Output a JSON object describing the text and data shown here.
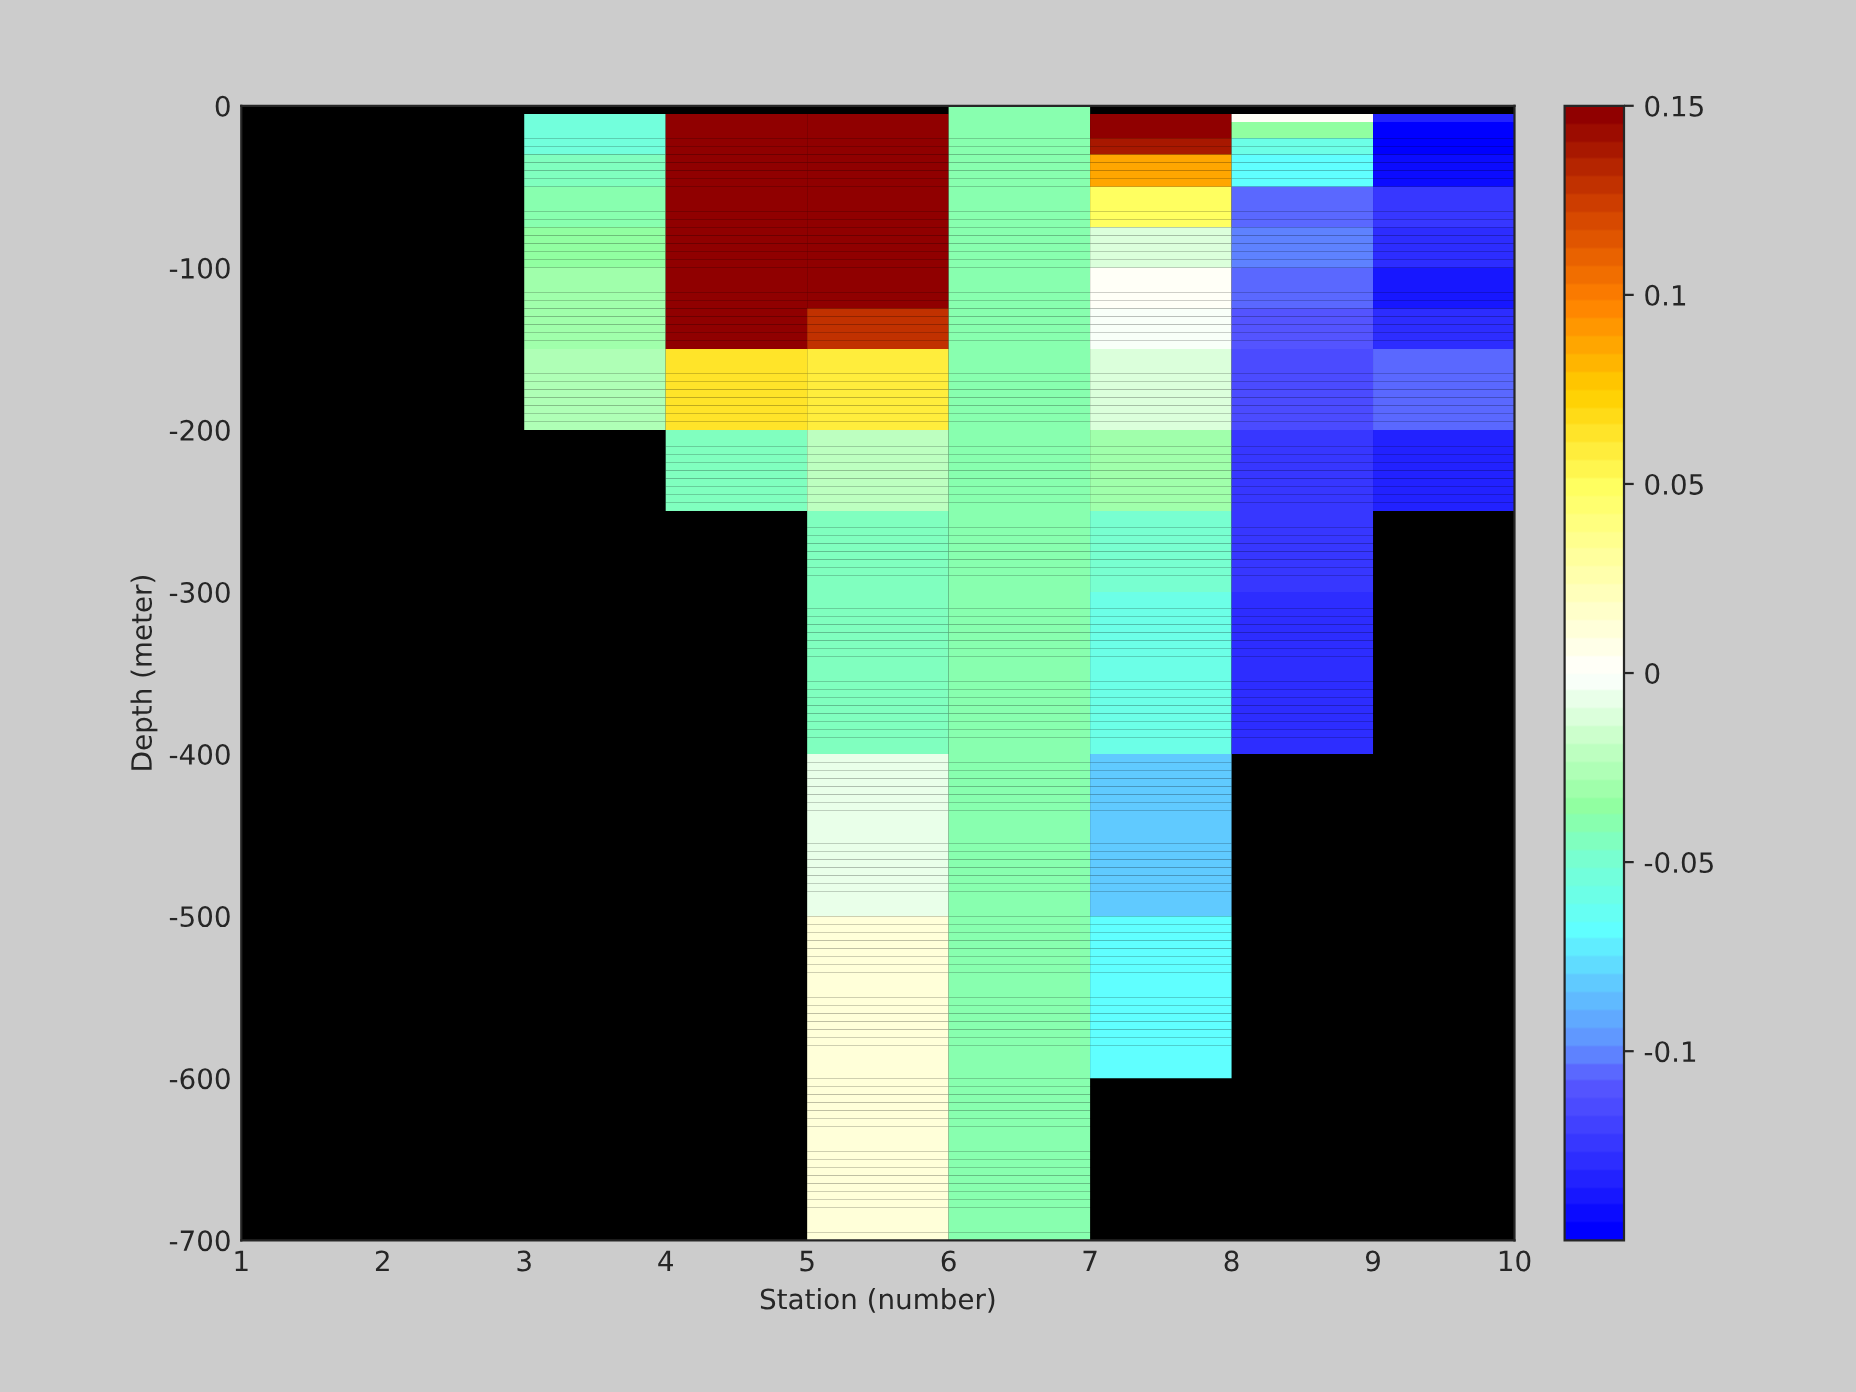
{
  "chart_data": {
    "type": "heatmap",
    "xlabel": "Station (number)",
    "ylabel": "Depth (meter)",
    "cells": [
      [
        null,
        null,
        null,
        null,
        null,
        -0.038,
        null,
        null,
        null
      ],
      [
        null,
        null,
        -0.055,
        0.148,
        0.148,
        -0.038,
        0.148,
        0.0,
        -0.135
      ],
      [
        null,
        null,
        -0.055,
        0.148,
        0.148,
        -0.038,
        0.148,
        -0.035,
        -0.148
      ],
      [
        null,
        null,
        -0.055,
        0.148,
        0.148,
        -0.038,
        0.148,
        -0.035,
        -0.148
      ],
      [
        null,
        null,
        -0.055,
        0.148,
        0.148,
        -0.038,
        0.14,
        -0.058,
        -0.148
      ],
      [
        null,
        null,
        -0.055,
        0.148,
        0.148,
        -0.038,
        0.14,
        -0.058,
        -0.148
      ],
      [
        null,
        null,
        -0.045,
        0.148,
        0.148,
        -0.038,
        0.085,
        -0.07,
        -0.142
      ],
      [
        null,
        null,
        -0.045,
        0.148,
        0.148,
        -0.038,
        0.085,
        -0.07,
        -0.142
      ],
      [
        null,
        null,
        -0.045,
        0.148,
        0.148,
        -0.038,
        0.085,
        -0.07,
        -0.142
      ],
      [
        null,
        null,
        -0.045,
        0.148,
        0.148,
        -0.038,
        0.085,
        -0.07,
        -0.142
      ],
      [
        null,
        null,
        -0.038,
        0.148,
        0.148,
        -0.038,
        0.05,
        -0.105,
        -0.125
      ],
      [
        null,
        null,
        -0.038,
        0.148,
        0.148,
        -0.038,
        0.05,
        -0.105,
        -0.125
      ],
      [
        null,
        null,
        -0.038,
        0.148,
        0.148,
        -0.038,
        0.05,
        -0.105,
        -0.125
      ],
      [
        null,
        null,
        -0.038,
        0.148,
        0.148,
        -0.038,
        0.05,
        -0.105,
        -0.125
      ],
      [
        null,
        null,
        -0.038,
        0.148,
        0.148,
        -0.038,
        0.05,
        -0.105,
        -0.125
      ],
      [
        null,
        null,
        -0.035,
        0.148,
        0.148,
        -0.038,
        -0.01,
        -0.1,
        -0.13
      ],
      [
        null,
        null,
        -0.035,
        0.148,
        0.148,
        -0.038,
        -0.01,
        -0.1,
        -0.13
      ],
      [
        null,
        null,
        -0.035,
        0.148,
        0.148,
        -0.038,
        -0.01,
        -0.1,
        -0.13
      ],
      [
        null,
        null,
        -0.035,
        0.148,
        0.148,
        -0.038,
        -0.01,
        -0.1,
        -0.13
      ],
      [
        null,
        null,
        -0.035,
        0.148,
        0.148,
        -0.038,
        -0.01,
        -0.1,
        -0.13
      ],
      [
        null,
        null,
        -0.03,
        0.148,
        0.148,
        -0.038,
        0.002,
        -0.105,
        -0.138
      ],
      [
        null,
        null,
        -0.03,
        0.148,
        0.148,
        -0.038,
        0.002,
        -0.105,
        -0.138
      ],
      [
        null,
        null,
        -0.03,
        0.148,
        0.148,
        -0.038,
        0.002,
        -0.105,
        -0.138
      ],
      [
        null,
        null,
        -0.03,
        0.148,
        0.148,
        -0.038,
        0.002,
        -0.105,
        -0.138
      ],
      [
        null,
        null,
        -0.03,
        0.148,
        0.148,
        -0.038,
        0.002,
        -0.105,
        -0.138
      ],
      [
        null,
        null,
        -0.03,
        0.148,
        0.13,
        -0.038,
        -0.002,
        -0.11,
        -0.13
      ],
      [
        null,
        null,
        -0.03,
        0.148,
        0.13,
        -0.038,
        -0.002,
        -0.11,
        -0.13
      ],
      [
        null,
        null,
        -0.03,
        0.148,
        0.13,
        -0.038,
        -0.002,
        -0.11,
        -0.13
      ],
      [
        null,
        null,
        -0.03,
        0.148,
        0.13,
        -0.038,
        -0.002,
        -0.11,
        -0.13
      ],
      [
        null,
        null,
        -0.03,
        0.148,
        0.13,
        -0.038,
        -0.002,
        -0.11,
        -0.13
      ],
      [
        null,
        null,
        -0.025,
        0.065,
        0.06,
        -0.038,
        -0.01,
        -0.115,
        -0.105
      ],
      [
        null,
        null,
        -0.025,
        0.065,
        0.06,
        -0.038,
        -0.01,
        -0.115,
        -0.105
      ],
      [
        null,
        null,
        -0.025,
        0.065,
        0.06,
        -0.038,
        -0.01,
        -0.115,
        -0.105
      ],
      [
        null,
        null,
        -0.025,
        0.065,
        0.06,
        -0.038,
        -0.01,
        -0.115,
        -0.105
      ],
      [
        null,
        null,
        -0.025,
        0.065,
        0.06,
        -0.038,
        -0.01,
        -0.115,
        -0.105
      ],
      [
        null,
        null,
        -0.025,
        0.065,
        0.06,
        -0.038,
        -0.01,
        -0.115,
        -0.105
      ],
      [
        null,
        null,
        -0.025,
        0.065,
        0.06,
        -0.038,
        -0.01,
        -0.115,
        -0.105
      ],
      [
        null,
        null,
        -0.025,
        0.065,
        0.06,
        -0.038,
        -0.01,
        -0.115,
        -0.105
      ],
      [
        null,
        null,
        -0.025,
        0.065,
        0.06,
        -0.038,
        -0.01,
        -0.115,
        -0.105
      ],
      [
        null,
        null,
        -0.025,
        0.065,
        0.06,
        -0.038,
        -0.01,
        -0.115,
        -0.105
      ],
      [
        null,
        null,
        null,
        -0.045,
        -0.02,
        -0.038,
        -0.032,
        -0.125,
        -0.135
      ],
      [
        null,
        null,
        null,
        -0.045,
        -0.02,
        -0.038,
        -0.032,
        -0.125,
        -0.135
      ],
      [
        null,
        null,
        null,
        -0.045,
        -0.02,
        -0.038,
        -0.032,
        -0.125,
        -0.135
      ],
      [
        null,
        null,
        null,
        -0.045,
        -0.02,
        -0.038,
        -0.032,
        -0.125,
        -0.135
      ],
      [
        null,
        null,
        null,
        -0.045,
        -0.02,
        -0.038,
        -0.032,
        -0.125,
        -0.135
      ],
      [
        null,
        null,
        null,
        -0.045,
        -0.02,
        -0.038,
        -0.032,
        -0.125,
        -0.135
      ],
      [
        null,
        null,
        null,
        -0.045,
        -0.02,
        -0.038,
        -0.032,
        -0.125,
        -0.135
      ],
      [
        null,
        null,
        null,
        -0.045,
        -0.02,
        -0.038,
        -0.032,
        -0.125,
        -0.135
      ],
      [
        null,
        null,
        null,
        -0.045,
        -0.02,
        -0.038,
        -0.032,
        -0.125,
        -0.135
      ],
      [
        null,
        null,
        null,
        -0.045,
        -0.02,
        -0.038,
        -0.032,
        -0.125,
        -0.135
      ],
      [
        null,
        null,
        null,
        null,
        -0.043,
        -0.038,
        -0.047,
        -0.125,
        null
      ],
      [
        null,
        null,
        null,
        null,
        -0.043,
        -0.038,
        -0.047,
        -0.125,
        null
      ],
      [
        null,
        null,
        null,
        null,
        -0.043,
        -0.038,
        -0.047,
        -0.125,
        null
      ],
      [
        null,
        null,
        null,
        null,
        -0.043,
        -0.038,
        -0.047,
        -0.125,
        null
      ],
      [
        null,
        null,
        null,
        null,
        -0.043,
        -0.038,
        -0.047,
        -0.125,
        null
      ],
      [
        null,
        null,
        null,
        null,
        -0.043,
        -0.038,
        -0.047,
        -0.125,
        null
      ],
      [
        null,
        null,
        null,
        null,
        -0.043,
        -0.038,
        -0.047,
        -0.125,
        null
      ],
      [
        null,
        null,
        null,
        null,
        -0.043,
        -0.038,
        -0.047,
        -0.125,
        null
      ],
      [
        null,
        null,
        null,
        null,
        -0.043,
        -0.038,
        -0.047,
        -0.125,
        null
      ],
      [
        null,
        null,
        null,
        null,
        -0.043,
        -0.038,
        -0.047,
        -0.125,
        null
      ],
      [
        null,
        null,
        null,
        null,
        -0.043,
        -0.038,
        -0.06,
        -0.13,
        null
      ],
      [
        null,
        null,
        null,
        null,
        -0.043,
        -0.038,
        -0.06,
        -0.13,
        null
      ],
      [
        null,
        null,
        null,
        null,
        -0.043,
        -0.038,
        -0.06,
        -0.13,
        null
      ],
      [
        null,
        null,
        null,
        null,
        -0.043,
        -0.038,
        -0.06,
        -0.13,
        null
      ],
      [
        null,
        null,
        null,
        null,
        -0.043,
        -0.038,
        -0.06,
        -0.13,
        null
      ],
      [
        null,
        null,
        null,
        null,
        -0.043,
        -0.038,
        -0.06,
        -0.13,
        null
      ],
      [
        null,
        null,
        null,
        null,
        -0.043,
        -0.038,
        -0.06,
        -0.13,
        null
      ],
      [
        null,
        null,
        null,
        null,
        -0.043,
        -0.038,
        -0.06,
        -0.13,
        null
      ],
      [
        null,
        null,
        null,
        null,
        -0.043,
        -0.038,
        -0.06,
        -0.13,
        null
      ],
      [
        null,
        null,
        null,
        null,
        -0.043,
        -0.038,
        -0.06,
        -0.13,
        null
      ],
      [
        null,
        null,
        null,
        null,
        -0.043,
        -0.038,
        -0.06,
        -0.13,
        null
      ],
      [
        null,
        null,
        null,
        null,
        -0.043,
        -0.038,
        -0.06,
        -0.13,
        null
      ],
      [
        null,
        null,
        null,
        null,
        -0.043,
        -0.038,
        -0.06,
        -0.13,
        null
      ],
      [
        null,
        null,
        null,
        null,
        -0.043,
        -0.038,
        -0.06,
        -0.13,
        null
      ],
      [
        null,
        null,
        null,
        null,
        -0.043,
        -0.038,
        -0.06,
        -0.13,
        null
      ],
      [
        null,
        null,
        null,
        null,
        -0.043,
        -0.038,
        -0.06,
        -0.13,
        null
      ],
      [
        null,
        null,
        null,
        null,
        -0.043,
        -0.038,
        -0.06,
        -0.13,
        null
      ],
      [
        null,
        null,
        null,
        null,
        -0.043,
        -0.038,
        -0.06,
        -0.13,
        null
      ],
      [
        null,
        null,
        null,
        null,
        -0.043,
        -0.038,
        -0.06,
        -0.13,
        null
      ],
      [
        null,
        null,
        null,
        null,
        -0.043,
        -0.038,
        -0.06,
        -0.13,
        null
      ],
      [
        null,
        null,
        null,
        null,
        -0.008,
        -0.038,
        -0.08,
        null,
        null
      ],
      [
        null,
        null,
        null,
        null,
        -0.008,
        -0.038,
        -0.08,
        null,
        null
      ],
      [
        null,
        null,
        null,
        null,
        -0.008,
        -0.038,
        -0.08,
        null,
        null
      ],
      [
        null,
        null,
        null,
        null,
        -0.008,
        -0.038,
        -0.08,
        null,
        null
      ],
      [
        null,
        null,
        null,
        null,
        -0.008,
        -0.038,
        -0.08,
        null,
        null
      ],
      [
        null,
        null,
        null,
        null,
        -0.008,
        -0.038,
        -0.08,
        null,
        null
      ],
      [
        null,
        null,
        null,
        null,
        -0.008,
        -0.038,
        -0.08,
        null,
        null
      ],
      [
        null,
        null,
        null,
        null,
        -0.008,
        -0.038,
        -0.08,
        null,
        null
      ],
      [
        null,
        null,
        null,
        null,
        -0.008,
        -0.038,
        -0.08,
        null,
        null
      ],
      [
        null,
        null,
        null,
        null,
        -0.008,
        -0.038,
        -0.08,
        null,
        null
      ],
      [
        null,
        null,
        null,
        null,
        -0.008,
        -0.038,
        -0.08,
        null,
        null
      ],
      [
        null,
        null,
        null,
        null,
        -0.008,
        -0.038,
        -0.08,
        null,
        null
      ],
      [
        null,
        null,
        null,
        null,
        -0.008,
        -0.038,
        -0.08,
        null,
        null
      ],
      [
        null,
        null,
        null,
        null,
        -0.008,
        -0.038,
        -0.08,
        null,
        null
      ],
      [
        null,
        null,
        null,
        null,
        -0.008,
        -0.038,
        -0.08,
        null,
        null
      ],
      [
        null,
        null,
        null,
        null,
        -0.008,
        -0.038,
        -0.08,
        null,
        null
      ],
      [
        null,
        null,
        null,
        null,
        -0.008,
        -0.038,
        -0.08,
        null,
        null
      ],
      [
        null,
        null,
        null,
        null,
        -0.008,
        -0.038,
        -0.08,
        null,
        null
      ],
      [
        null,
        null,
        null,
        null,
        -0.008,
        -0.038,
        -0.08,
        null,
        null
      ],
      [
        null,
        null,
        null,
        null,
        -0.008,
        -0.038,
        -0.08,
        null,
        null
      ],
      [
        null,
        null,
        null,
        null,
        0.01,
        -0.038,
        -0.07,
        null,
        null
      ],
      [
        null,
        null,
        null,
        null,
        0.01,
        -0.038,
        -0.07,
        null,
        null
      ],
      [
        null,
        null,
        null,
        null,
        0.01,
        -0.038,
        -0.07,
        null,
        null
      ],
      [
        null,
        null,
        null,
        null,
        0.01,
        -0.038,
        -0.07,
        null,
        null
      ],
      [
        null,
        null,
        null,
        null,
        0.01,
        -0.038,
        -0.07,
        null,
        null
      ],
      [
        null,
        null,
        null,
        null,
        0.01,
        -0.038,
        -0.07,
        null,
        null
      ],
      [
        null,
        null,
        null,
        null,
        0.01,
        -0.038,
        -0.07,
        null,
        null
      ],
      [
        null,
        null,
        null,
        null,
        0.01,
        -0.038,
        -0.07,
        null,
        null
      ],
      [
        null,
        null,
        null,
        null,
        0.01,
        -0.038,
        -0.07,
        null,
        null
      ],
      [
        null,
        null,
        null,
        null,
        0.01,
        -0.038,
        -0.07,
        null,
        null
      ],
      [
        null,
        null,
        null,
        null,
        0.01,
        -0.038,
        -0.07,
        null,
        null
      ],
      [
        null,
        null,
        null,
        null,
        0.01,
        -0.038,
        -0.07,
        null,
        null
      ],
      [
        null,
        null,
        null,
        null,
        0.01,
        -0.038,
        -0.07,
        null,
        null
      ],
      [
        null,
        null,
        null,
        null,
        0.01,
        -0.038,
        -0.07,
        null,
        null
      ],
      [
        null,
        null,
        null,
        null,
        0.01,
        -0.038,
        -0.07,
        null,
        null
      ],
      [
        null,
        null,
        null,
        null,
        0.01,
        -0.038,
        -0.07,
        null,
        null
      ],
      [
        null,
        null,
        null,
        null,
        0.01,
        -0.038,
        -0.07,
        null,
        null
      ],
      [
        null,
        null,
        null,
        null,
        0.01,
        -0.038,
        -0.07,
        null,
        null
      ],
      [
        null,
        null,
        null,
        null,
        0.01,
        -0.038,
        -0.07,
        null,
        null
      ],
      [
        null,
        null,
        null,
        null,
        0.01,
        -0.038,
        -0.07,
        null,
        null
      ],
      [
        null,
        null,
        null,
        null,
        0.01,
        -0.038,
        null,
        null,
        null
      ],
      [
        null,
        null,
        null,
        null,
        0.01,
        -0.038,
        null,
        null,
        null
      ],
      [
        null,
        null,
        null,
        null,
        0.01,
        -0.038,
        null,
        null,
        null
      ],
      [
        null,
        null,
        null,
        null,
        0.01,
        -0.038,
        null,
        null,
        null
      ],
      [
        null,
        null,
        null,
        null,
        0.01,
        -0.038,
        null,
        null,
        null
      ],
      [
        null,
        null,
        null,
        null,
        0.01,
        -0.038,
        null,
        null,
        null
      ],
      [
        null,
        null,
        null,
        null,
        0.01,
        -0.038,
        null,
        null,
        null
      ],
      [
        null,
        null,
        null,
        null,
        0.01,
        -0.038,
        null,
        null,
        null
      ],
      [
        null,
        null,
        null,
        null,
        0.01,
        -0.038,
        null,
        null,
        null
      ],
      [
        null,
        null,
        null,
        null,
        0.01,
        -0.038,
        null,
        null,
        null
      ],
      [
        null,
        null,
        null,
        null,
        0.01,
        -0.038,
        null,
        null,
        null
      ],
      [
        null,
        null,
        null,
        null,
        0.01,
        -0.038,
        null,
        null,
        null
      ],
      [
        null,
        null,
        null,
        null,
        0.01,
        -0.038,
        null,
        null,
        null
      ],
      [
        null,
        null,
        null,
        null,
        0.01,
        -0.038,
        null,
        null,
        null
      ],
      [
        null,
        null,
        null,
        null,
        0.01,
        -0.038,
        null,
        null,
        null
      ],
      [
        null,
        null,
        null,
        null,
        0.01,
        -0.038,
        null,
        null,
        null
      ],
      [
        null,
        null,
        null,
        null,
        0.01,
        -0.038,
        null,
        null,
        null
      ],
      [
        null,
        null,
        null,
        null,
        0.01,
        -0.038,
        null,
        null,
        null
      ],
      [
        null,
        null,
        null,
        null,
        0.01,
        -0.038,
        null,
        null,
        null
      ],
      [
        null,
        null,
        null,
        null,
        0.01,
        -0.038,
        null,
        null,
        null
      ]
    ],
    "xlim": [
      1,
      10
    ],
    "xticks": [
      1,
      2,
      3,
      4,
      5,
      6,
      7,
      8,
      9,
      10
    ],
    "ylim": [
      -700,
      0
    ],
    "yticks": [
      -700,
      -600,
      -500,
      -400,
      -300,
      -200,
      -100,
      0
    ],
    "clim": [
      -0.15,
      0.15
    ],
    "cticks": [
      -0.1,
      -0.05,
      0,
      0.05,
      0.1,
      0.15
    ]
  }
}
